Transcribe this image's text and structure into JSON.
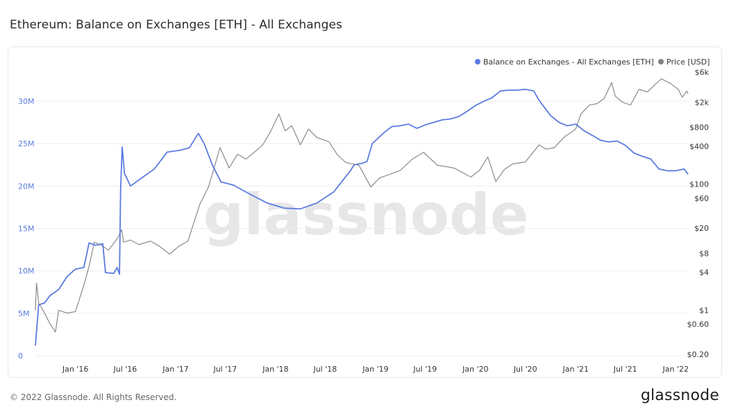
{
  "page": {
    "title": "Ethereum: Balance on Exchanges [ETH] - All Exchanges",
    "copyright": "© 2022 Glassnode. All Rights Reserved.",
    "brand": "glassnode",
    "watermark": "glassnode"
  },
  "colors": {
    "balance": "#5b7be0",
    "price": "#808080",
    "left_axis_text": "#5b7be0",
    "right_axis_text": "#333333",
    "grid": "#eeeeee",
    "watermark": "#e7e7e7"
  },
  "chart_data": {
    "type": "line",
    "title": "Ethereum: Balance on Exchanges [ETH] - All Exchanges",
    "legend": {
      "position": "top-right",
      "entries": [
        "Balance on Exchanges - All Exchanges [ETH]",
        "Price [USD]"
      ]
    },
    "x_ticks": [
      "Jan '16",
      "Jul '16",
      "Jan '17",
      "Jul '17",
      "Jan '18",
      "Jul '18",
      "Jan '19",
      "Jul '19",
      "Jan '20",
      "Jul '20",
      "Jan '21",
      "Jul '21",
      "Jan '22"
    ],
    "xlim": [
      "2015-08-08",
      "2022-02-20"
    ],
    "y_left": {
      "ticks": [
        0,
        5000000,
        10000000,
        15000000,
        20000000,
        25000000,
        30000000
      ],
      "tick_labels": [
        "0",
        "5M",
        "10M",
        "15M",
        "20M",
        "25M",
        "30M"
      ],
      "lim": [
        0,
        34000000
      ],
      "grid": true
    },
    "y_right": {
      "scale": "log",
      "ticks": [
        0.2,
        0.6,
        1,
        4,
        8,
        20,
        60,
        100,
        400,
        800,
        2000,
        6000
      ],
      "tick_labels": [
        "$0.20",
        "$0.60",
        "$1",
        "$4",
        "$8",
        "$20",
        "$60",
        "$100",
        "$400",
        "$800",
        "$2k",
        "$6k"
      ],
      "lim": [
        0.2,
        6000
      ]
    },
    "series": [
      {
        "name": "Balance on Exchanges - All Exchanges [ETH]",
        "axis": "left",
        "points": [
          [
            "2015-08-08",
            1200000
          ],
          [
            "2015-08-20",
            6000000
          ],
          [
            "2015-09-10",
            6200000
          ],
          [
            "2015-10-01",
            7100000
          ],
          [
            "2015-11-01",
            7800000
          ],
          [
            "2015-12-01",
            9300000
          ],
          [
            "2016-01-01",
            10200000
          ],
          [
            "2016-02-01",
            10400000
          ],
          [
            "2016-02-20",
            13300000
          ],
          [
            "2016-03-15",
            13000000
          ],
          [
            "2016-04-10",
            13200000
          ],
          [
            "2016-04-20",
            9800000
          ],
          [
            "2016-05-20",
            9700000
          ],
          [
            "2016-06-01",
            10400000
          ],
          [
            "2016-06-10",
            9600000
          ],
          [
            "2016-06-14",
            19500000
          ],
          [
            "2016-06-20",
            24600000
          ],
          [
            "2016-06-28",
            21500000
          ],
          [
            "2016-07-20",
            20000000
          ],
          [
            "2016-09-01",
            21000000
          ],
          [
            "2016-10-15",
            22000000
          ],
          [
            "2016-12-01",
            24000000
          ],
          [
            "2017-01-15",
            24200000
          ],
          [
            "2017-02-20",
            24500000
          ],
          [
            "2017-03-25",
            26200000
          ],
          [
            "2017-04-15",
            25000000
          ],
          [
            "2017-05-15",
            22500000
          ],
          [
            "2017-06-15",
            20500000
          ],
          [
            "2017-08-01",
            20100000
          ],
          [
            "2017-10-01",
            19000000
          ],
          [
            "2017-12-01",
            18000000
          ],
          [
            "2018-02-01",
            17400000
          ],
          [
            "2018-04-01",
            17300000
          ],
          [
            "2018-06-01",
            18000000
          ],
          [
            "2018-08-01",
            19300000
          ],
          [
            "2018-10-01",
            21800000
          ],
          [
            "2018-10-15",
            22500000
          ],
          [
            "2018-11-15",
            22700000
          ],
          [
            "2018-12-01",
            22900000
          ],
          [
            "2018-12-20",
            25000000
          ],
          [
            "2019-02-01",
            26300000
          ],
          [
            "2019-03-01",
            27000000
          ],
          [
            "2019-04-01",
            27100000
          ],
          [
            "2019-05-01",
            27300000
          ],
          [
            "2019-06-01",
            26800000
          ],
          [
            "2019-07-01",
            27200000
          ],
          [
            "2019-08-01",
            27500000
          ],
          [
            "2019-09-01",
            27800000
          ],
          [
            "2019-10-01",
            27900000
          ],
          [
            "2019-11-01",
            28200000
          ],
          [
            "2019-12-01",
            28800000
          ],
          [
            "2020-01-01",
            29500000
          ],
          [
            "2020-02-01",
            30000000
          ],
          [
            "2020-03-01",
            30400000
          ],
          [
            "2020-04-01",
            31200000
          ],
          [
            "2020-05-01",
            31300000
          ],
          [
            "2020-06-01",
            31300000
          ],
          [
            "2020-07-01",
            31400000
          ],
          [
            "2020-08-01",
            31200000
          ],
          [
            "2020-08-20",
            30100000
          ],
          [
            "2020-10-01",
            28300000
          ],
          [
            "2020-11-01",
            27500000
          ],
          [
            "2020-12-01",
            27100000
          ],
          [
            "2021-01-01",
            27300000
          ],
          [
            "2021-02-01",
            26500000
          ],
          [
            "2021-03-01",
            26000000
          ],
          [
            "2021-04-01",
            25400000
          ],
          [
            "2021-05-01",
            25200000
          ],
          [
            "2021-06-01",
            25300000
          ],
          [
            "2021-07-01",
            24800000
          ],
          [
            "2021-08-01",
            23900000
          ],
          [
            "2021-09-01",
            23500000
          ],
          [
            "2021-10-01",
            23200000
          ],
          [
            "2021-11-01",
            22000000
          ],
          [
            "2021-12-01",
            21800000
          ],
          [
            "2022-01-01",
            21800000
          ],
          [
            "2022-02-01",
            22000000
          ],
          [
            "2022-02-15",
            21400000
          ]
        ]
      },
      {
        "name": "Price [USD]",
        "axis": "right",
        "points": [
          [
            "2015-08-08",
            1.0
          ],
          [
            "2015-08-12",
            2.7
          ],
          [
            "2015-08-20",
            1.3
          ],
          [
            "2015-09-05",
            1.0
          ],
          [
            "2015-10-01",
            0.6
          ],
          [
            "2015-10-20",
            0.45
          ],
          [
            "2015-11-01",
            1.0
          ],
          [
            "2015-12-01",
            0.9
          ],
          [
            "2016-01-01",
            0.95
          ],
          [
            "2016-02-01",
            2.5
          ],
          [
            "2016-02-20",
            5.0
          ],
          [
            "2016-03-10",
            12.0
          ],
          [
            "2016-04-01",
            11.0
          ],
          [
            "2016-05-01",
            9.0
          ],
          [
            "2016-06-01",
            13.5
          ],
          [
            "2016-06-18",
            19.0
          ],
          [
            "2016-06-25",
            12.0
          ],
          [
            "2016-07-20",
            13.0
          ],
          [
            "2016-08-20",
            11.0
          ],
          [
            "2016-10-01",
            12.5
          ],
          [
            "2016-11-01",
            10.5
          ],
          [
            "2016-12-10",
            7.8
          ],
          [
            "2017-01-15",
            10.5
          ],
          [
            "2017-02-15",
            12.5
          ],
          [
            "2017-03-15",
            30.0
          ],
          [
            "2017-04-01",
            50.0
          ],
          [
            "2017-05-01",
            90.0
          ],
          [
            "2017-06-12",
            380.0
          ],
          [
            "2017-07-15",
            180.0
          ],
          [
            "2017-08-15",
            300.0
          ],
          [
            "2017-09-15",
            250.0
          ],
          [
            "2017-10-15",
            320.0
          ],
          [
            "2017-11-15",
            420.0
          ],
          [
            "2017-12-15",
            700.0
          ],
          [
            "2018-01-13",
            1300.0
          ],
          [
            "2018-02-05",
            700.0
          ],
          [
            "2018-03-01",
            850.0
          ],
          [
            "2018-04-01",
            420.0
          ],
          [
            "2018-05-01",
            750.0
          ],
          [
            "2018-06-01",
            550.0
          ],
          [
            "2018-07-15",
            470.0
          ],
          [
            "2018-08-15",
            290.0
          ],
          [
            "2018-09-15",
            220.0
          ],
          [
            "2018-11-01",
            200.0
          ],
          [
            "2018-12-15",
            90.0
          ],
          [
            "2019-01-15",
            125.0
          ],
          [
            "2019-02-15",
            140.0
          ],
          [
            "2019-04-01",
            165.0
          ],
          [
            "2019-05-15",
            250.0
          ],
          [
            "2019-06-25",
            320.0
          ],
          [
            "2019-08-15",
            200.0
          ],
          [
            "2019-09-15",
            190.0
          ],
          [
            "2019-10-15",
            180.0
          ],
          [
            "2019-12-15",
            130.0
          ],
          [
            "2020-01-15",
            165.0
          ],
          [
            "2020-02-15",
            270.0
          ],
          [
            "2020-03-15",
            110.0
          ],
          [
            "2020-04-15",
            170.0
          ],
          [
            "2020-05-15",
            210.0
          ],
          [
            "2020-07-01",
            225.0
          ],
          [
            "2020-08-20",
            420.0
          ],
          [
            "2020-09-15",
            360.0
          ],
          [
            "2020-10-15",
            380.0
          ],
          [
            "2020-11-20",
            560.0
          ],
          [
            "2020-12-31",
            740.0
          ],
          [
            "2021-01-20",
            1300.0
          ],
          [
            "2021-02-20",
            1800.0
          ],
          [
            "2021-03-20",
            1900.0
          ],
          [
            "2021-04-15",
            2300.0
          ],
          [
            "2021-05-12",
            4100.0
          ],
          [
            "2021-05-25",
            2500.0
          ],
          [
            "2021-06-20",
            2000.0
          ],
          [
            "2021-07-20",
            1800.0
          ],
          [
            "2021-08-20",
            3200.0
          ],
          [
            "2021-09-20",
            2900.0
          ],
          [
            "2021-10-20",
            3900.0
          ],
          [
            "2021-11-10",
            4700.0
          ],
          [
            "2021-12-15",
            3900.0
          ],
          [
            "2022-01-10",
            3200.0
          ],
          [
            "2022-01-25",
            2400.0
          ],
          [
            "2022-02-10",
            3000.0
          ],
          [
            "2022-02-15",
            2700.0
          ]
        ]
      }
    ]
  }
}
